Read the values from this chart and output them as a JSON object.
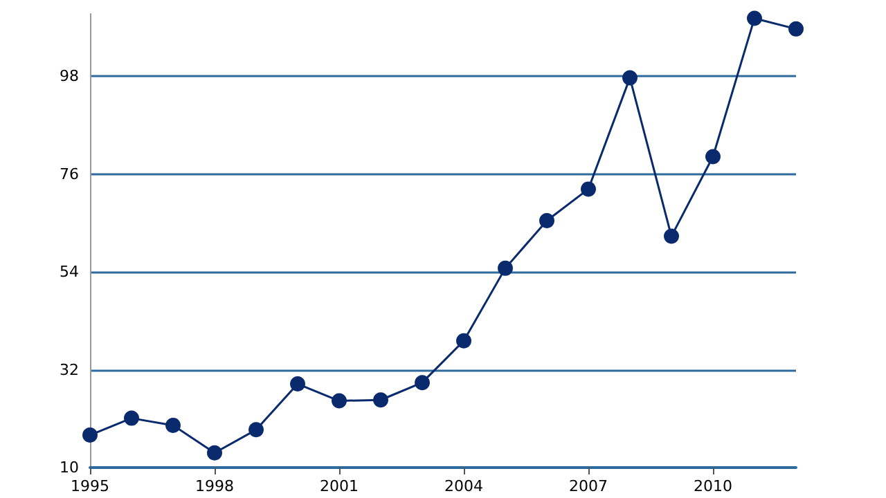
{
  "chart_data": {
    "type": "line",
    "x": [
      1995,
      1996,
      1997,
      1998,
      1999,
      2000,
      2001,
      2002,
      2003,
      2004,
      2005,
      2006,
      2007,
      2008,
      2009,
      2010,
      2011,
      2012
    ],
    "series": [
      {
        "color": "#0a2a6e",
        "values": [
          17.3,
          21.1,
          19.5,
          13.3,
          18.5,
          28.8,
          25.0,
          25.2,
          29.1,
          38.5,
          54.8,
          65.5,
          72.6,
          97.6,
          62.0,
          79.9,
          111,
          108.6
        ]
      }
    ],
    "xlim": [
      1995,
      2012
    ],
    "xticks": [
      1995,
      1998,
      2001,
      2004,
      2007,
      2010
    ],
    "ylim": [
      10,
      112
    ],
    "yticks": [
      10,
      32,
      54,
      76,
      98
    ],
    "grid": "y",
    "marker": "circle",
    "line_style": "solid"
  }
}
